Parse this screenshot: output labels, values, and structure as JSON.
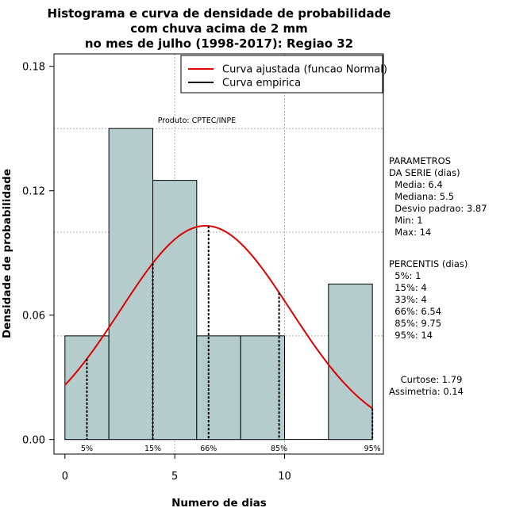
{
  "chart_data": {
    "type": "bar",
    "title": [
      "Histograma e curva de densidade de probabilidade",
      "com chuva acima de 2 mm",
      "no mes de julho (1998-2017): Regiao 32"
    ],
    "xlabel": "Numero de dias",
    "ylabel": "Densidade de probabilidade",
    "xlim": [
      -0.5,
      14.5
    ],
    "ylim": [
      -0.007,
      0.186
    ],
    "x_ticks": [
      0,
      5,
      10
    ],
    "y_ticks": [
      0.0,
      0.06,
      0.12,
      0.18
    ],
    "y_tick_labels": [
      "0.00",
      "0.06",
      "0.12",
      "0.18"
    ],
    "y_gridlines": [
      0.05,
      0.1,
      0.15
    ],
    "x_gridlines": [
      5,
      10
    ],
    "bins": [
      {
        "from": 0,
        "to": 2,
        "density": 0.05
      },
      {
        "from": 2,
        "to": 4,
        "density": 0.15
      },
      {
        "from": 4,
        "to": 6,
        "density": 0.125
      },
      {
        "from": 6,
        "to": 8,
        "density": 0.05
      },
      {
        "from": 8,
        "to": 10,
        "density": 0.05
      },
      {
        "from": 10,
        "to": 12,
        "density": 0.0
      },
      {
        "from": 12,
        "to": 14,
        "density": 0.075
      }
    ],
    "bar_color": "#b4cccc",
    "normal_curve": {
      "mean": 6.4,
      "sd": 3.87,
      "from": 0,
      "to": 14,
      "color": "#e00000"
    },
    "percentile_markers": [
      {
        "label": "5%",
        "x": 1
      },
      {
        "label": "15%",
        "x": 4
      },
      {
        "label": "66%",
        "x": 6.54
      },
      {
        "label": "85%",
        "x": 9.75
      },
      {
        "label": "95%",
        "x": 14
      }
    ],
    "legend": {
      "position": "top-right",
      "entries": [
        {
          "label": "Curva ajustada (funcao Normal)",
          "color": "#e00000"
        },
        {
          "label": "Curva empirica",
          "color": "#000000"
        }
      ]
    },
    "annotation": "Produto: CPTEC/INPE"
  },
  "sidebar": {
    "parametros": [
      "PARAMETROS",
      "DA SERIE (dias)",
      "  Media: 6.4",
      "  Mediana: 5.5",
      "  Desvio padrao: 3.87",
      "  Min: 1",
      "  Max: 14"
    ],
    "percentis": [
      "PERCENTIS (dias)",
      "  5%: 1",
      "  15%: 4",
      "  33%: 4",
      "  66%: 6.54",
      "  85%: 9.75",
      "  95%: 14"
    ],
    "shape": [
      "    Curtose: 1.79",
      "Assimetria: 0.14"
    ]
  }
}
